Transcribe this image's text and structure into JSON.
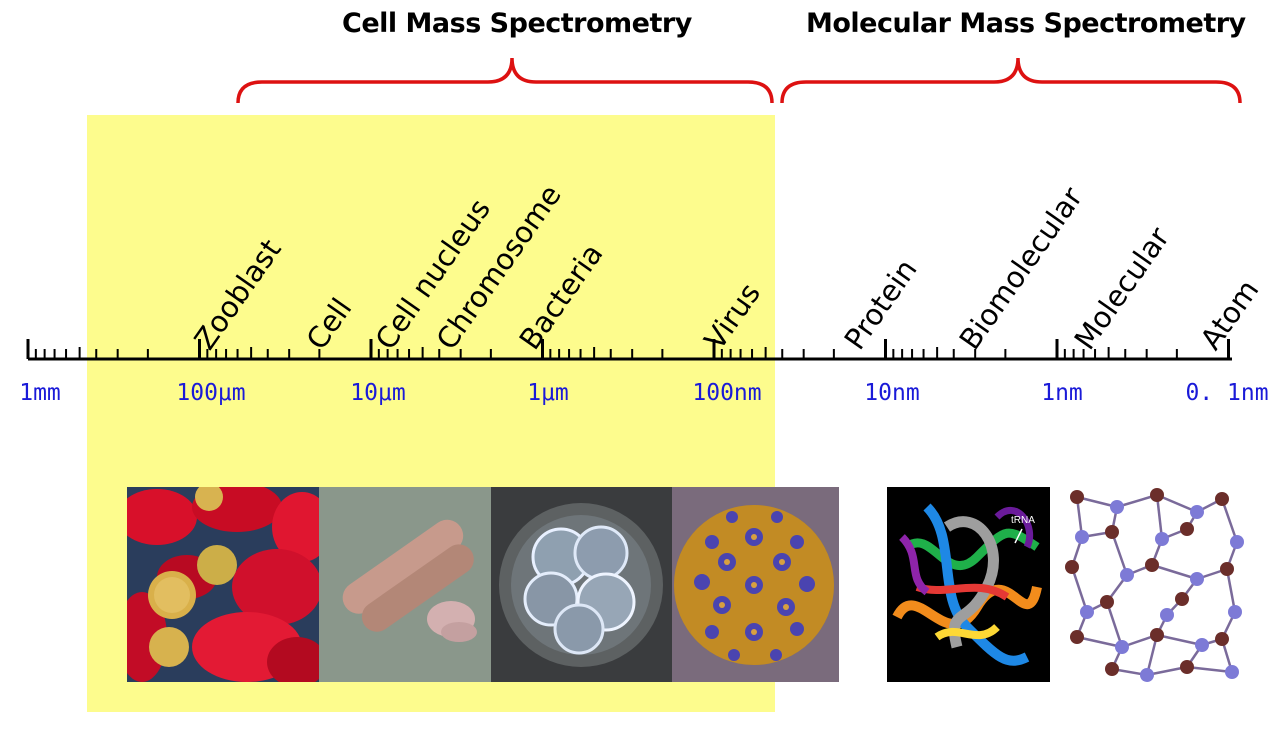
{
  "section_titles": {
    "cell": "Cell Mass Spectrometry",
    "molecular": "Molecular Mass Spectrometry"
  },
  "categories": [
    {
      "label": "Zooblast"
    },
    {
      "label": "Cell"
    },
    {
      "label": "Cell nucleus"
    },
    {
      "label": "Chromosome"
    },
    {
      "label": "Bacteria"
    },
    {
      "label": "Virus"
    },
    {
      "label": "Protein"
    },
    {
      "label": "Biomolecular"
    },
    {
      "label": "Molecular"
    },
    {
      "label": "Atom"
    }
  ],
  "scale_ticks": [
    {
      "label": "1mm"
    },
    {
      "label": "100μm"
    },
    {
      "label": "10μm"
    },
    {
      "label": "1μm"
    },
    {
      "label": "100nm"
    },
    {
      "label": "10nm"
    },
    {
      "label": "1nm"
    },
    {
      "label": "0. 1nm"
    }
  ],
  "photos": [
    {
      "name": "blood-cells"
    },
    {
      "name": "chromosome"
    },
    {
      "name": "embryo-cell"
    },
    {
      "name": "virus"
    },
    {
      "name": "protein-ribbon",
      "caption": "tRNA"
    },
    {
      "name": "atom-lattice"
    }
  ],
  "colors": {
    "highlight": "#fdfc8d",
    "brace": "#dd1111",
    "scale_label": "#1a1ad8"
  }
}
